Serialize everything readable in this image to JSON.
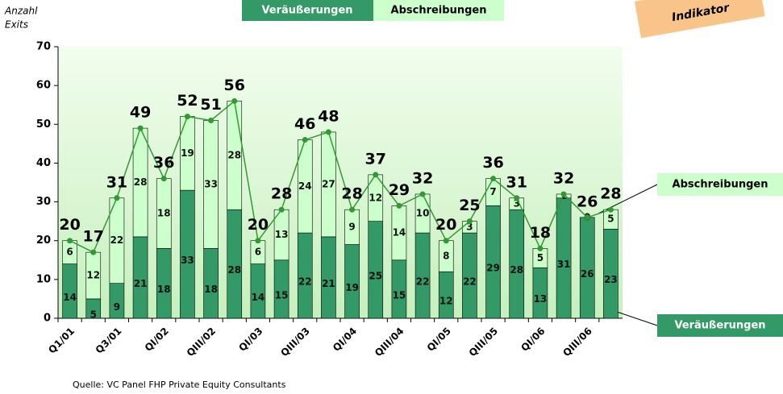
{
  "chart_data": {
    "type": "stacked_bar_line",
    "ylabel": [
      "Anzahl",
      "Exits"
    ],
    "annotation": "Indikator",
    "source": "Quelle: VC Panel FHP Private Equity Consultants",
    "categories": [
      "Q1/01",
      null,
      "Q3/01",
      null,
      "QI/02",
      null,
      "QIII/02",
      null,
      "QI/03",
      null,
      "QIII/03",
      null,
      "QI/04",
      null,
      "QIII/04",
      null,
      "QI/05",
      null,
      "QIII/05",
      null,
      "QI/06",
      null,
      "QIII/06",
      null
    ],
    "series": [
      {
        "name": "Veräußerungen",
        "color": "#339966",
        "values": [
          14,
          5,
          9,
          21,
          18,
          33,
          18,
          28,
          14,
          15,
          22,
          21,
          19,
          25,
          15,
          22,
          12,
          22,
          29,
          28,
          13,
          31,
          26,
          23
        ]
      },
      {
        "name": "Abschreibungen",
        "color": "#ccffcc",
        "values": [
          6,
          12,
          22,
          28,
          18,
          19,
          33,
          28,
          6,
          13,
          24,
          27,
          9,
          12,
          14,
          10,
          8,
          3,
          7,
          3,
          5,
          1,
          0,
          5
        ]
      }
    ],
    "line": {
      "color": "#339933",
      "values": [
        20,
        17,
        31,
        49,
        36,
        52,
        51,
        56,
        20,
        28,
        46,
        48,
        28,
        37,
        29,
        32,
        20,
        25,
        36,
        31,
        18,
        32,
        26,
        28
      ]
    },
    "ylim": [
      0,
      70
    ],
    "yticks": [
      0,
      10,
      20,
      30,
      40,
      50,
      60,
      70
    ]
  }
}
